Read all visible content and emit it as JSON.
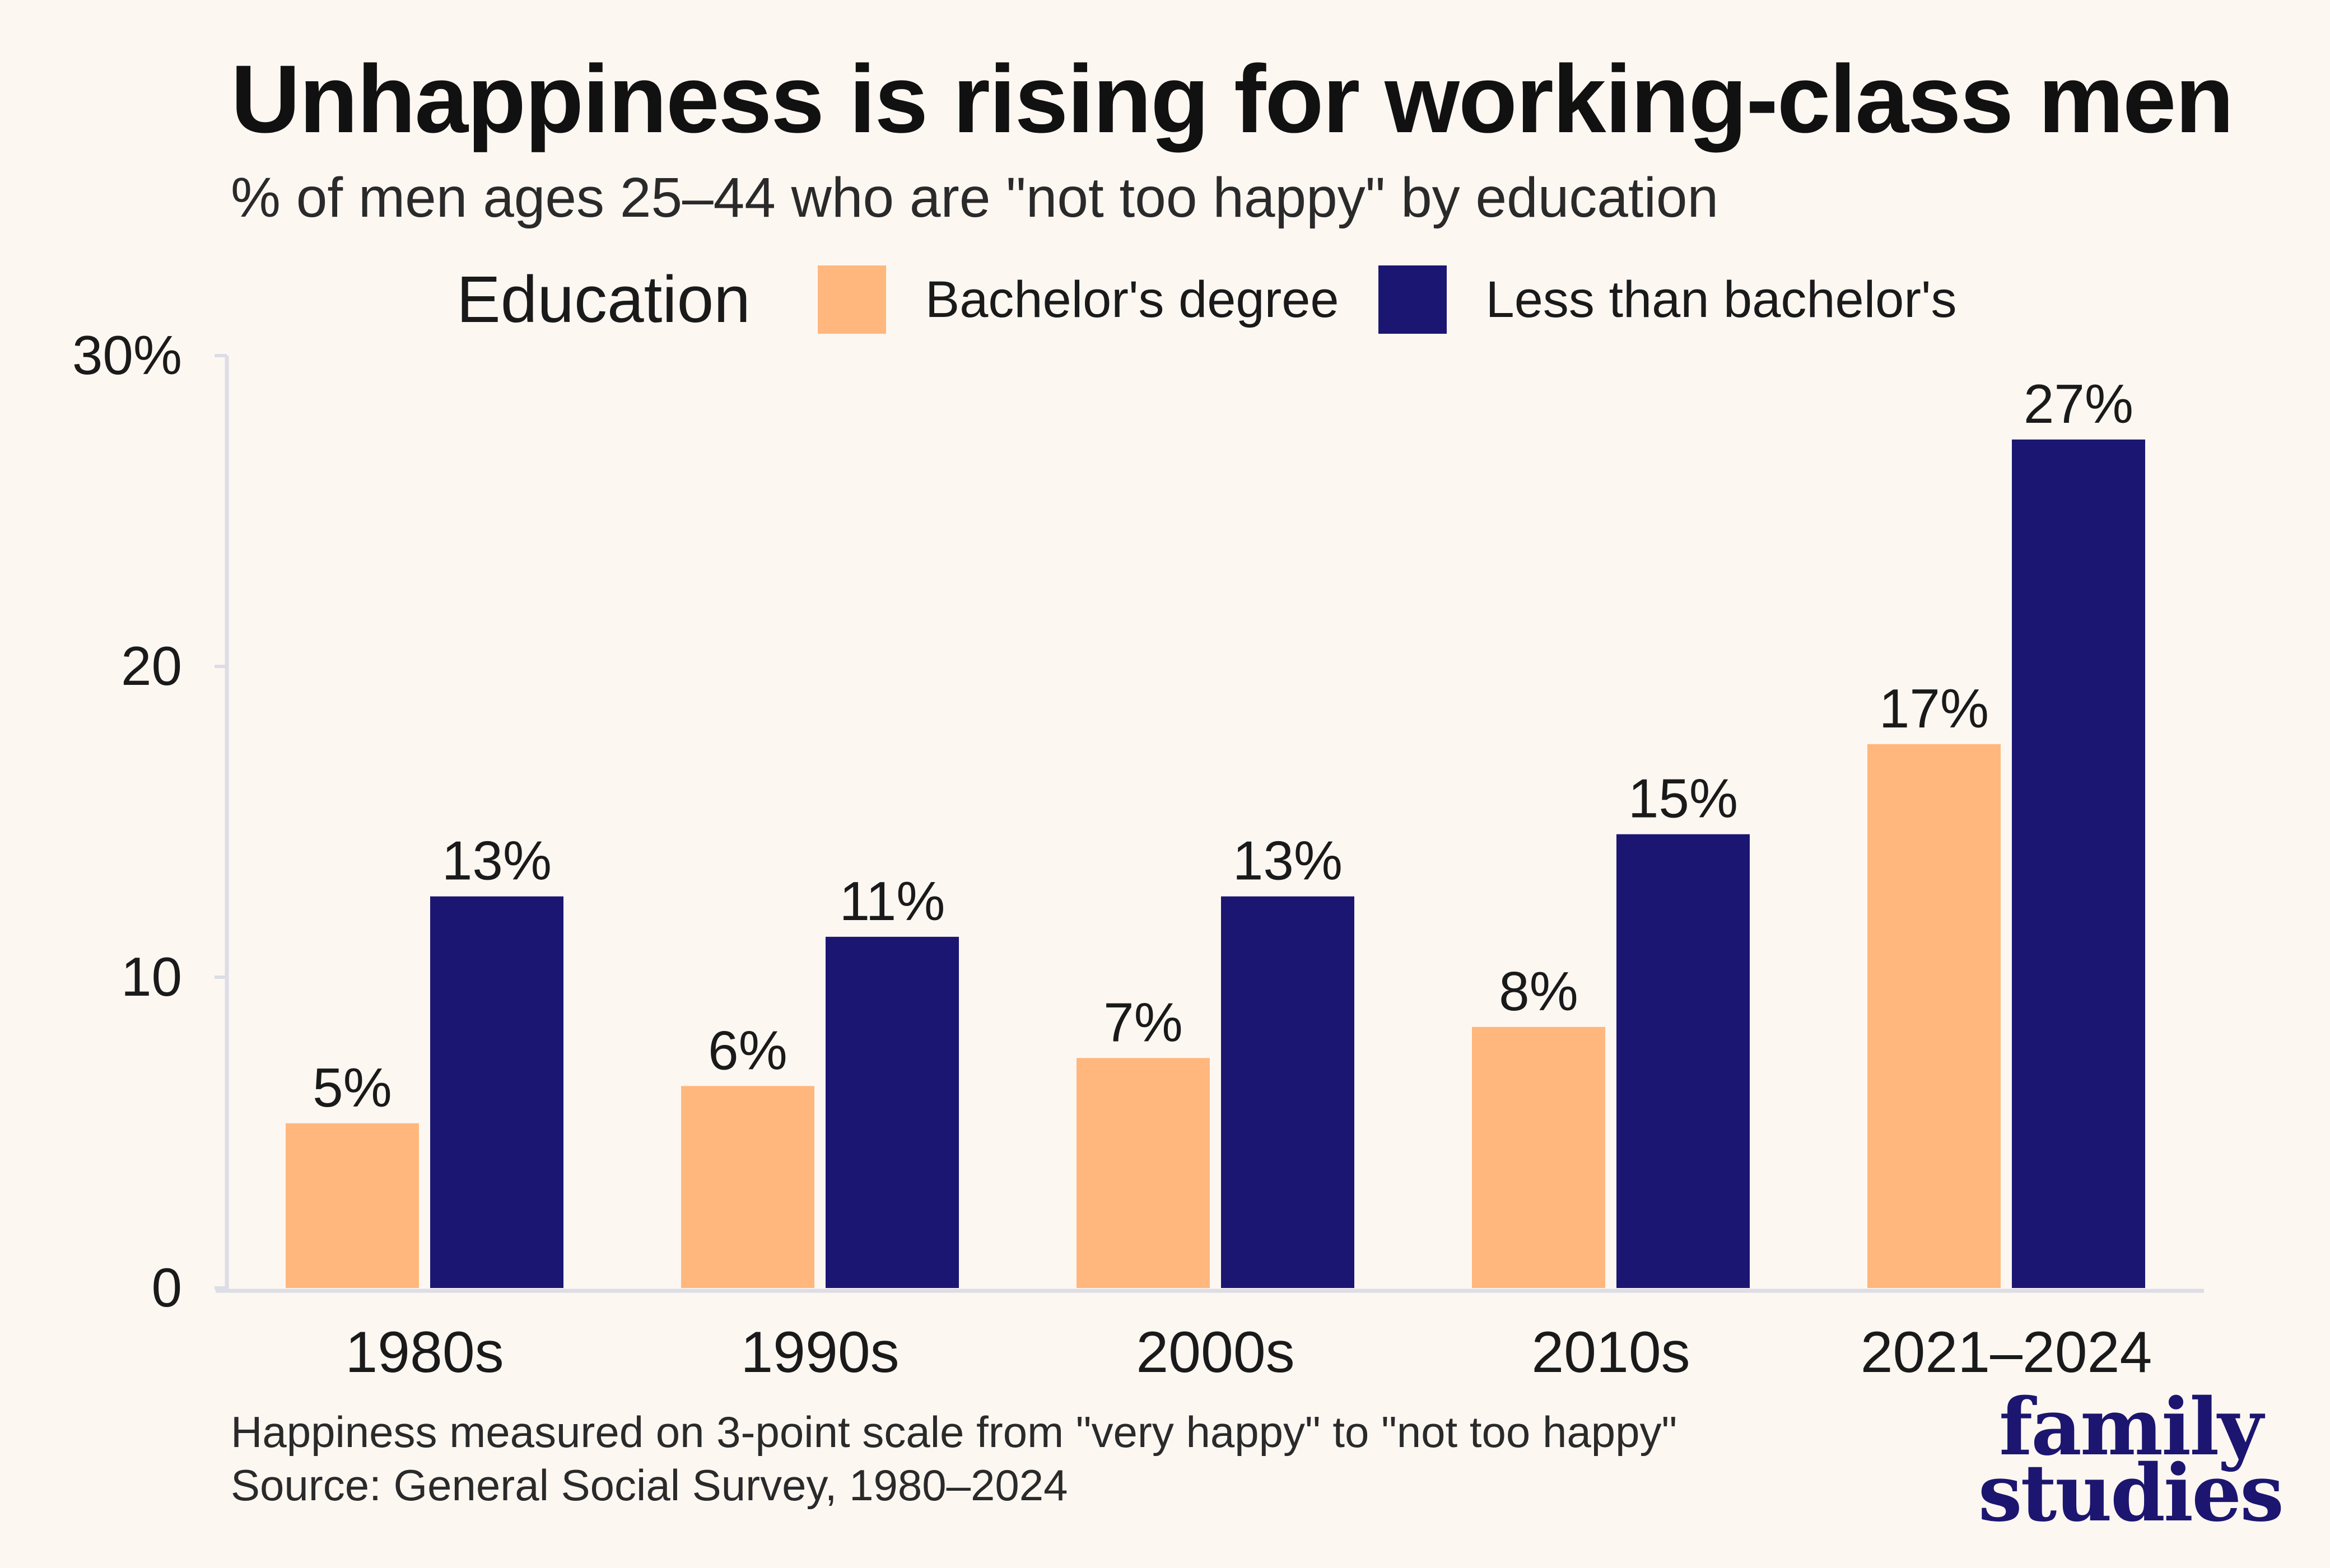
{
  "chart_data": {
    "type": "bar",
    "title": "Unhappiness is rising for working-class men",
    "subtitle": "% of men ages 25–44 who are \"not too happy\" by education",
    "xlabel": "",
    "ylabel": "",
    "categories": [
      "1980s",
      "1990s",
      "2000s",
      "2010s",
      "2021–2024"
    ],
    "series": [
      {
        "name": "Bachelor's degree",
        "color": "#ffb77d",
        "values": [
          5.3,
          6.5,
          7.4,
          8.4,
          17.5
        ],
        "labels": [
          "5%",
          "6%",
          "7%",
          "8%",
          "17%"
        ]
      },
      {
        "name": "Less than bachelor's",
        "color": "#1c1673",
        "values": [
          12.6,
          11.3,
          12.6,
          14.6,
          27.3
        ],
        "labels": [
          "13%",
          "11%",
          "13%",
          "15%",
          "27%"
        ]
      }
    ],
    "ylim": [
      0,
      30
    ],
    "yticks": [
      0,
      10,
      20,
      30
    ],
    "ytick_labels": [
      "0",
      "10",
      "20",
      "30%"
    ],
    "grid": false,
    "legend": {
      "title": "Education",
      "placement": "top"
    }
  },
  "footnote": {
    "line1": "Happiness measured on 3-point scale from \"very happy\" to \"not too happy\"",
    "line2": "Source: General Social Survey, 1980–2024"
  },
  "logo": {
    "line1": "family",
    "line2": "studies"
  }
}
